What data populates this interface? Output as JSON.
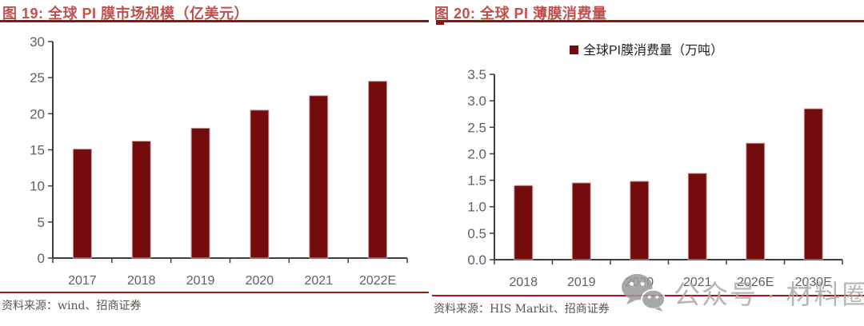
{
  "page": {
    "background": "#ffffff"
  },
  "colors": {
    "bar": "#740B0C",
    "bar_edge": "#C9A7A7",
    "title_text": "#C0504D",
    "title_rule": "#8E1610",
    "source_rule": "#9E1A12",
    "axis": "#3F3F3F",
    "tick_label": "#59626C",
    "legend_text": "#1F1F1F",
    "source_text": "#5C564E",
    "watermark": "#A9A9A9"
  },
  "chart_data": [
    {
      "type": "bar",
      "title": "图 19: 全球 PI 膜市场规模（亿美元）",
      "categories": [
        "2017",
        "2018",
        "2019",
        "2020",
        "2021",
        "2022E"
      ],
      "values": [
        15.1,
        16.2,
        18.0,
        20.5,
        22.5,
        24.5
      ],
      "ylim": [
        0,
        30
      ],
      "ytick_labels": [
        "0",
        "5",
        "10",
        "15",
        "20",
        "25",
        "30"
      ],
      "grid": false,
      "legend": null,
      "legend_position": "none",
      "xlabel": "",
      "ylabel": "",
      "source": "资料来源：wind、招商证券"
    },
    {
      "type": "bar",
      "title": "图 20: 全球 PI 薄膜消费量",
      "legend": "全球PI膜消费量（万吨）",
      "legend_position": "top-center",
      "categories": [
        "2018",
        "2019",
        "2020",
        "2021",
        "2026E",
        "2030E"
      ],
      "values": [
        1.4,
        1.45,
        1.48,
        1.63,
        2.2,
        2.85
      ],
      "ylim": [
        0,
        3.5
      ],
      "ytick_labels": [
        "0.0",
        "0.5",
        "1.0",
        "1.5",
        "2.0",
        "2.5",
        "3.0",
        "3.5"
      ],
      "grid": false,
      "xlabel": "",
      "ylabel": "",
      "source": "资料来源：HIS Markit、招商证券"
    }
  ],
  "watermark": {
    "icon": "wechat-icon",
    "text": "公众号 · 材料圈"
  }
}
